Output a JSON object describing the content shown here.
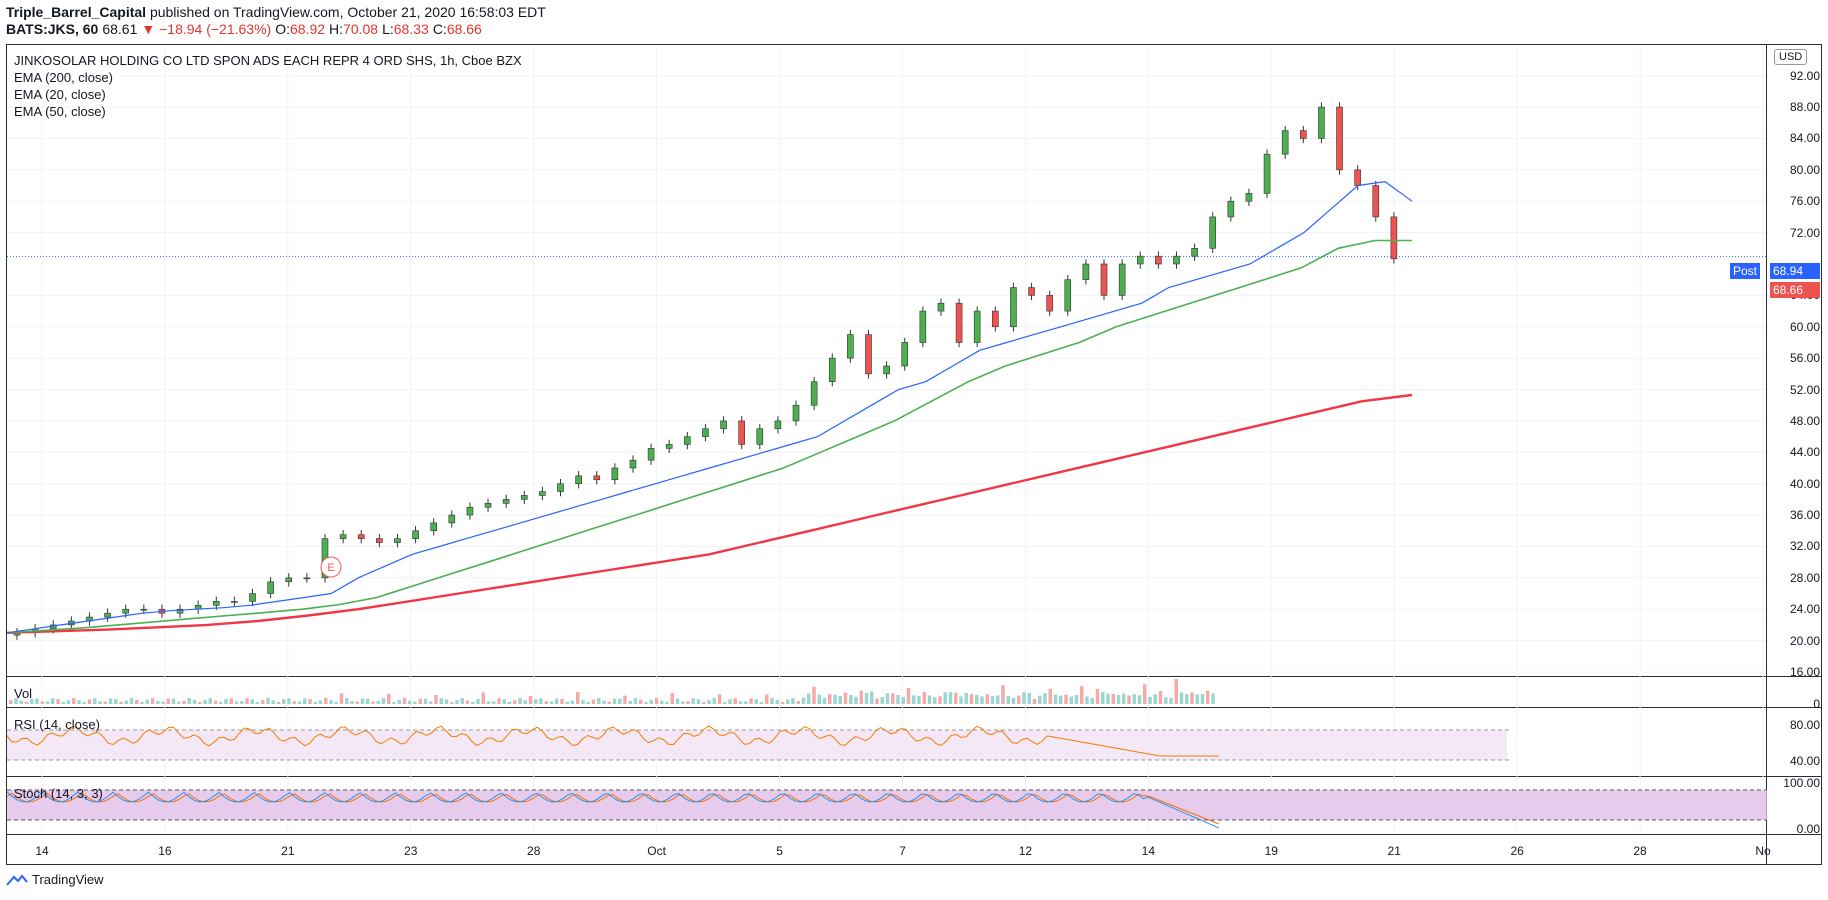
{
  "header": {
    "author": "Triple_Barrel_Capital",
    "published": "published on TradingView.com, October 21, 2020 16:58:03 EDT",
    "symbol": "BATS:JKS, 60",
    "last": "68.61",
    "change": "▼ −18.94 (−21.63%)",
    "open_label": "O:",
    "open": "68.92",
    "high_label": "H:",
    "high": "70.08",
    "low_label": "L:",
    "low": "68.33",
    "close_label": "C:",
    "close": "68.66"
  },
  "legend": {
    "title": "JINKOSOLAR HOLDING CO LTD SPON ADS EACH REPR 4 ORD SHS, 1h, Cboe BZX",
    "ema200": "EMA (200, close)",
    "ema20": "EMA (20, close)",
    "ema50": "EMA (50, close)"
  },
  "currency": "USD",
  "price_ticks": [
    "92.00",
    "88.00",
    "84.00",
    "80.00",
    "76.00",
    "72.00",
    "64.00",
    "60.00",
    "56.00",
    "52.00",
    "48.00",
    "44.00",
    "40.00",
    "36.00",
    "32.00",
    "28.00",
    "24.00",
    "20.00",
    "16.00"
  ],
  "post_label": "Post",
  "post_price": "68.94",
  "last_price": "68.66",
  "earnings_marker": "E",
  "panes": {
    "vol": {
      "label": "Vol",
      "tick": "0"
    },
    "rsi": {
      "label": "RSI (14, close)",
      "ticks": [
        "80.00",
        "40.00"
      ]
    },
    "stoch": {
      "label": "Stoch (14, 3, 3)",
      "ticks": [
        "100.00",
        "0.00"
      ]
    }
  },
  "x_ticks": [
    "14",
    "16",
    "21",
    "23",
    "28",
    "Oct",
    "5",
    "7",
    "12",
    "14",
    "19",
    "21",
    "26",
    "28",
    "No"
  ],
  "footer": {
    "brand": "TradingView"
  },
  "colors": {
    "up": "#26a69a",
    "up_body": "#4caf50",
    "down": "#ef5350",
    "ema20": "#2962ff",
    "ema50": "#4caf50",
    "ema200": "#f23645",
    "rsi": "#f57c00",
    "stoch_k": "#2196f3",
    "stoch_d": "#ff6d00"
  },
  "chart_data": {
    "type": "line",
    "xlabel": "",
    "ylabel": "",
    "ylim": [
      16,
      94
    ],
    "x_range": [
      "14",
      "No"
    ],
    "grid": true,
    "close_series_sampled": [
      21,
      21.5,
      22,
      22.5,
      23,
      23.5,
      24,
      24,
      23.5,
      24,
      24.5,
      25,
      25,
      26,
      27.5,
      28,
      28,
      33,
      33.5,
      33,
      32.5,
      33,
      34,
      35,
      36,
      37,
      37.5,
      38,
      38.5,
      39,
      40,
      41,
      40.5,
      42,
      43,
      44.5,
      45,
      46,
      47,
      48,
      45,
      47,
      48,
      50,
      53,
      56,
      59,
      54,
      55,
      58,
      62,
      63,
      58,
      62,
      60,
      65,
      64,
      62,
      66,
      68,
      64,
      68,
      69,
      68,
      69,
      70,
      74,
      76,
      77,
      82,
      85,
      84,
      88,
      80,
      78,
      74,
      68.66
    ],
    "ema20": [
      21,
      21.5,
      22,
      22.5,
      23,
      23.5,
      23.8,
      24,
      24.2,
      24.5,
      25,
      25.5,
      26,
      28,
      29.5,
      31,
      32,
      33,
      34,
      35,
      36,
      37,
      38,
      39,
      40,
      41,
      42,
      43,
      44,
      45,
      46,
      48,
      50,
      52,
      53,
      55,
      57,
      58,
      59,
      60,
      61,
      62,
      63,
      65,
      66,
      67,
      68,
      70,
      72,
      75,
      78,
      78.5,
      76
    ],
    "ema50": [
      21,
      21.3,
      21.6,
      22,
      22.4,
      22.8,
      23.2,
      23.6,
      24,
      24.6,
      25.5,
      27,
      28.5,
      30,
      31.5,
      33,
      34.5,
      36,
      37.5,
      39,
      40.5,
      42,
      44,
      46,
      48,
      50.5,
      53,
      55,
      56.5,
      58,
      60,
      61.5,
      63,
      64.5,
      66,
      67.5,
      70,
      71,
      71
    ],
    "ema200": [
      21,
      21.2,
      21.4,
      21.7,
      22,
      22.5,
      23.2,
      24,
      25,
      26,
      27,
      28,
      29,
      30,
      31,
      32.5,
      34,
      35.5,
      37,
      38.5,
      40,
      41.5,
      43,
      44.5,
      46,
      47.5,
      49,
      50.5,
      51.3
    ]
  }
}
